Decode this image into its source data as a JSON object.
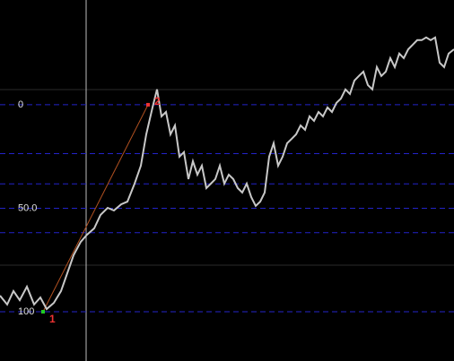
{
  "chart_data": {
    "type": "line",
    "x": [
      0,
      8,
      15,
      22,
      30,
      38,
      45,
      52,
      60,
      68,
      75,
      82,
      90,
      97,
      105,
      112,
      120,
      127,
      135,
      142,
      150,
      157,
      163,
      170,
      175,
      180,
      185,
      190,
      195,
      200,
      205,
      210,
      215,
      220,
      225,
      230,
      235,
      240,
      245,
      250,
      255,
      260,
      265,
      270,
      275,
      280,
      285,
      290,
      295,
      300,
      305,
      310,
      315,
      320,
      325,
      330,
      335,
      340,
      345,
      350,
      355,
      360,
      365,
      370,
      375,
      380,
      385,
      390,
      395,
      400,
      405,
      410,
      415,
      420,
      425,
      430,
      435,
      440,
      445,
      450,
      455,
      460,
      465,
      470,
      475,
      480,
      485,
      490,
      495,
      500,
      506
    ],
    "series": [
      {
        "color": "#c8c8c8",
        "values": [
          92.2,
          96.5,
          90.0,
          94.4,
          87.9,
          96.5,
          93.1,
          98.7,
          95.7,
          90.0,
          81.4,
          72.7,
          66.2,
          62.8,
          59.7,
          53.2,
          49.8,
          51.1,
          48.1,
          46.8,
          38.1,
          29.4,
          14.3,
          1.3,
          -7.4,
          5.6,
          3.5,
          14.3,
          10.0,
          25.1,
          22.9,
          35.9,
          27.3,
          33.8,
          29.4,
          40.3,
          38.1,
          35.9,
          29.4,
          38.1,
          33.8,
          35.9,
          40.3,
          42.4,
          38.1,
          44.6,
          48.9,
          46.8,
          42.4,
          25.1,
          18.6,
          29.4,
          25.1,
          18.6,
          16.5,
          14.3,
          10.0,
          12.1,
          5.6,
          7.8,
          3.5,
          5.6,
          1.3,
          3.5,
          -0.9,
          -3.0,
          -7.4,
          -5.2,
          -11.7,
          -13.9,
          -16.0,
          -9.5,
          -7.4,
          -18.2,
          -13.9,
          -16.0,
          -22.5,
          -18.2,
          -24.7,
          -22.5,
          -26.8,
          -29.0,
          -31.2,
          -31.2,
          -32.5,
          -31.2,
          -32.5,
          -20.3,
          -18.2,
          -24.7,
          -26.8
        ]
      }
    ],
    "xlim": [
      0,
      506
    ],
    "ylim": [
      123.8,
      -50.6
    ],
    "yticks": [
      0,
      {
        "value": 50,
        "label": "50.0"
      },
      100
    ],
    "fib_levels": [
      0,
      23.6,
      38.2,
      50,
      61.8,
      100
    ],
    "fib_color": "#2323c8",
    "annotations": [
      {
        "label": "1",
        "x": 48,
        "value": 100,
        "color": "#22cc22"
      },
      {
        "label": "2",
        "x": 165,
        "value": 0,
        "color": "#ee3333"
      }
    ]
  }
}
